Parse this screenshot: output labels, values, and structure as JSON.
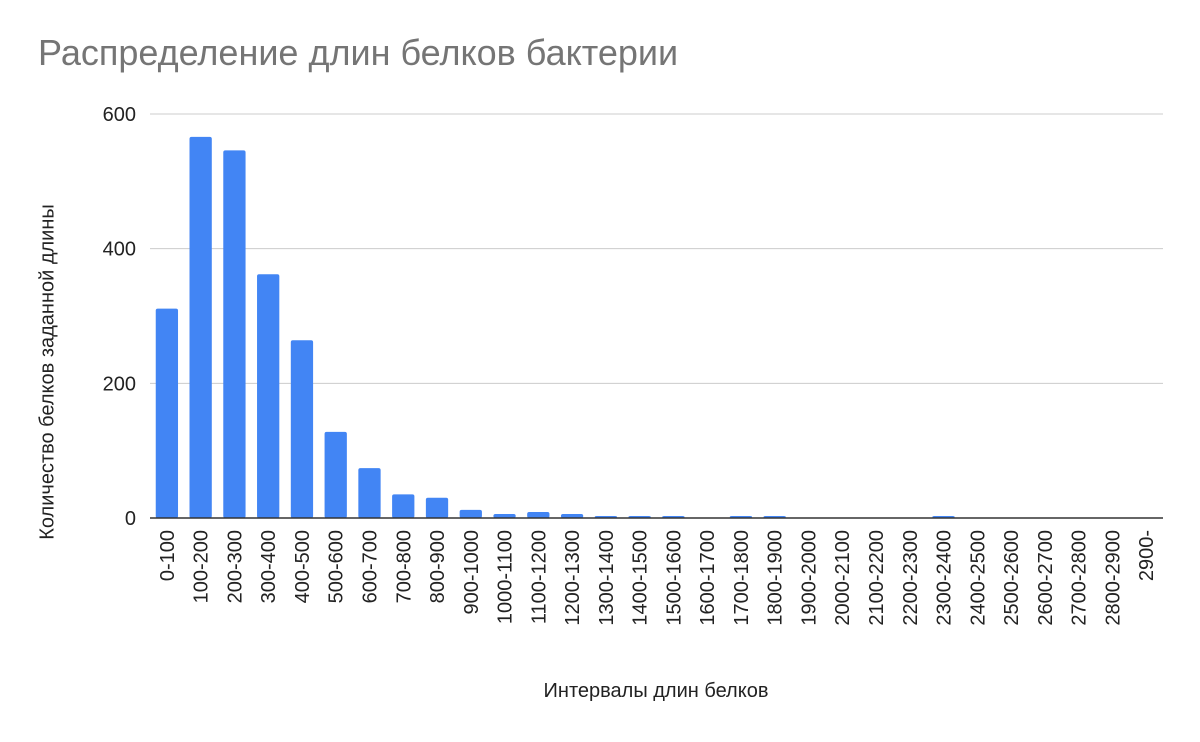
{
  "chart_data": {
    "type": "bar",
    "title": "Распределение длин белков бактерии",
    "xlabel": "Интервалы длин белков",
    "ylabel": "Количество белков заданной длины",
    "ylim": [
      0,
      600
    ],
    "yticks": [
      0,
      200,
      400,
      600
    ],
    "grid": true,
    "legend": "none",
    "categories": [
      "0-100",
      "100-200",
      "200-300",
      "300-400",
      "400-500",
      "500-600",
      "600-700",
      "700-800",
      "800-900",
      "900-1000",
      "1000-1100",
      "1100-1200",
      "1200-1300",
      "1300-1400",
      "1400-1500",
      "1500-1600",
      "1600-1700",
      "1700-1800",
      "1800-1900",
      "1900-2000",
      "2000-2100",
      "2100-2200",
      "2200-2300",
      "2300-2400",
      "2400-2500",
      "2500-2600",
      "2600-2700",
      "2700-2800",
      "2800-2900",
      "2900-"
    ],
    "values": [
      311,
      566,
      546,
      362,
      264,
      128,
      74,
      35,
      30,
      12,
      6,
      9,
      6,
      3,
      3,
      3,
      0,
      3,
      3,
      0,
      0,
      0,
      0,
      3,
      0,
      0,
      0,
      0,
      0,
      0
    ],
    "colors": {
      "bar": "#4285f4",
      "grid": "#cccccc",
      "axis": "#333333",
      "title": "#757575",
      "text": "#222222"
    }
  }
}
